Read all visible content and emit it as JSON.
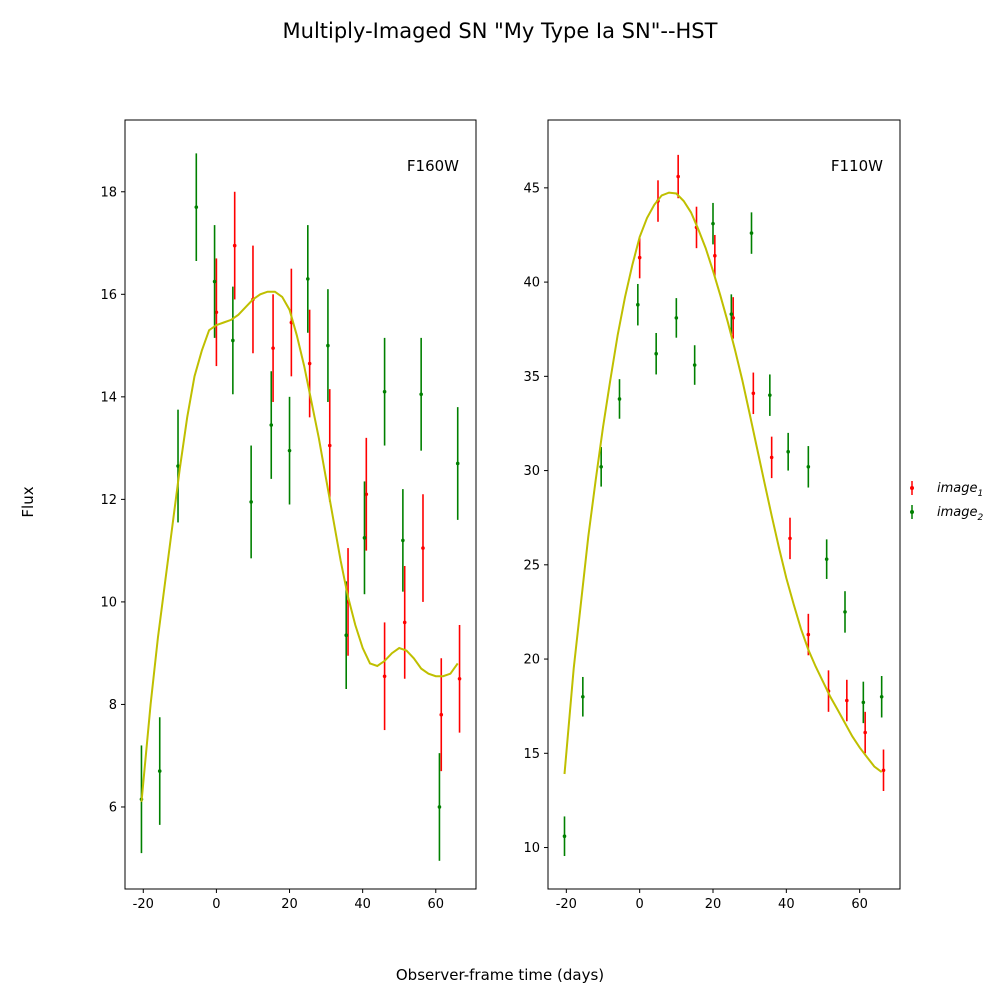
{
  "figure": {
    "title": "Multiply-Imaged SN \"My Type Ia SN\"--HST",
    "xlabel": "Observer-frame time (days)",
    "ylabel": "Flux"
  },
  "legend": {
    "placement": "right",
    "entries": [
      {
        "label": "image",
        "sub": "1",
        "color": "#ff0000"
      },
      {
        "label": "image",
        "sub": "2",
        "color": "#008000"
      }
    ]
  },
  "chart_data": [
    {
      "type": "scatter",
      "panel_label": "F160W",
      "xlim": [
        -25,
        71
      ],
      "ylim": [
        4.4,
        19.4
      ],
      "xticks": [
        "-20",
        "0",
        "20",
        "40",
        "60"
      ],
      "xtick_values": [
        -20,
        0,
        20,
        40,
        60
      ],
      "yticks": [
        "6",
        "8",
        "10",
        "12",
        "14",
        "16",
        "18"
      ],
      "ytick_values": [
        6,
        8,
        10,
        12,
        14,
        16,
        18
      ],
      "model_color": "#bfbf00",
      "series": [
        {
          "name": "image1",
          "color": "#ff0000",
          "points": [
            {
              "x": 0,
              "y": 15.65,
              "err": 1.05
            },
            {
              "x": 5,
              "y": 16.95,
              "err": 1.05
            },
            {
              "x": 10,
              "y": 15.9,
              "err": 1.05
            },
            {
              "x": 15.5,
              "y": 14.95,
              "err": 1.05
            },
            {
              "x": 20.5,
              "y": 15.45,
              "err": 1.05
            },
            {
              "x": 25.5,
              "y": 14.65,
              "err": 1.05
            },
            {
              "x": 31,
              "y": 13.05,
              "err": 1.1
            },
            {
              "x": 36,
              "y": 10.0,
              "err": 1.05
            },
            {
              "x": 41,
              "y": 12.1,
              "err": 1.1
            },
            {
              "x": 46,
              "y": 8.55,
              "err": 1.05
            },
            {
              "x": 51.5,
              "y": 9.6,
              "err": 1.1
            },
            {
              "x": 56.5,
              "y": 11.05,
              "err": 1.05
            },
            {
              "x": 61.5,
              "y": 7.8,
              "err": 1.1
            },
            {
              "x": 66.5,
              "y": 8.5,
              "err": 1.05
            }
          ]
        },
        {
          "name": "image2",
          "color": "#008000",
          "points": [
            {
              "x": -20.5,
              "y": 6.15,
              "err": 1.05
            },
            {
              "x": -15.5,
              "y": 6.7,
              "err": 1.05
            },
            {
              "x": -10.5,
              "y": 12.65,
              "err": 1.1
            },
            {
              "x": -5.5,
              "y": 17.7,
              "err": 1.05
            },
            {
              "x": -0.5,
              "y": 16.25,
              "err": 1.1
            },
            {
              "x": 4.5,
              "y": 15.1,
              "err": 1.05
            },
            {
              "x": 9.5,
              "y": 11.95,
              "err": 1.1
            },
            {
              "x": 15,
              "y": 13.45,
              "err": 1.05
            },
            {
              "x": 20,
              "y": 12.95,
              "err": 1.05
            },
            {
              "x": 25,
              "y": 16.3,
              "err": 1.05
            },
            {
              "x": 30.5,
              "y": 15.0,
              "err": 1.1
            },
            {
              "x": 35.5,
              "y": 9.35,
              "err": 1.05
            },
            {
              "x": 40.5,
              "y": 11.25,
              "err": 1.1
            },
            {
              "x": 46,
              "y": 14.1,
              "err": 1.05
            },
            {
              "x": 51,
              "y": 11.2,
              "err": 1.0
            },
            {
              "x": 56,
              "y": 14.05,
              "err": 1.1
            },
            {
              "x": 61,
              "y": 6.0,
              "err": 1.05
            },
            {
              "x": 66,
              "y": 12.7,
              "err": 1.1
            }
          ]
        }
      ],
      "model": {
        "x": [
          -20.5,
          -18,
          -16,
          -14,
          -12,
          -10,
          -8,
          -6,
          -4,
          -2,
          0,
          2,
          4,
          6,
          8,
          10,
          12,
          14,
          16,
          18,
          20,
          22,
          24,
          26,
          28,
          30,
          32,
          34,
          36,
          38,
          40,
          42,
          44,
          46,
          48,
          50,
          52,
          54,
          56,
          58,
          60,
          62,
          64,
          66
        ],
        "y": [
          6.1,
          8.0,
          9.3,
          10.4,
          11.5,
          12.6,
          13.6,
          14.4,
          14.9,
          15.3,
          15.4,
          15.45,
          15.5,
          15.6,
          15.75,
          15.9,
          16.0,
          16.05,
          16.05,
          15.95,
          15.7,
          15.2,
          14.6,
          13.9,
          13.2,
          12.4,
          11.6,
          10.8,
          10.1,
          9.55,
          9.1,
          8.8,
          8.75,
          8.85,
          9.0,
          9.1,
          9.05,
          8.9,
          8.7,
          8.6,
          8.55,
          8.55,
          8.6,
          8.8
        ]
      }
    },
    {
      "type": "scatter",
      "panel_label": "F110W",
      "xlim": [
        -25,
        71
      ],
      "ylim": [
        7.8,
        48.6
      ],
      "xticks": [
        "-20",
        "0",
        "20",
        "40",
        "60"
      ],
      "xtick_values": [
        -20,
        0,
        20,
        40,
        60
      ],
      "yticks": [
        "10",
        "15",
        "20",
        "25",
        "30",
        "35",
        "40",
        "45"
      ],
      "ytick_values": [
        10,
        15,
        20,
        25,
        30,
        35,
        40,
        45
      ],
      "model_color": "#bfbf00",
      "series": [
        {
          "name": "image1",
          "color": "#ff0000",
          "points": [
            {
              "x": 0,
              "y": 41.3,
              "err": 1.1
            },
            {
              "x": 5,
              "y": 44.3,
              "err": 1.1
            },
            {
              "x": 10.5,
              "y": 45.6,
              "err": 1.15
            },
            {
              "x": 15.5,
              "y": 42.9,
              "err": 1.1
            },
            {
              "x": 20.5,
              "y": 41.4,
              "err": 1.1
            },
            {
              "x": 25.5,
              "y": 38.1,
              "err": 1.1
            },
            {
              "x": 31,
              "y": 34.1,
              "err": 1.1
            },
            {
              "x": 36,
              "y": 30.7,
              "err": 1.1
            },
            {
              "x": 41,
              "y": 26.4,
              "err": 1.1
            },
            {
              "x": 46,
              "y": 21.3,
              "err": 1.1
            },
            {
              "x": 51.5,
              "y": 18.3,
              "err": 1.1
            },
            {
              "x": 56.5,
              "y": 17.8,
              "err": 1.1
            },
            {
              "x": 61.5,
              "y": 16.1,
              "err": 1.1
            },
            {
              "x": 66.5,
              "y": 14.1,
              "err": 1.1
            }
          ]
        },
        {
          "name": "image2",
          "color": "#008000",
          "points": [
            {
              "x": -20.5,
              "y": 10.6,
              "err": 1.05
            },
            {
              "x": -15.5,
              "y": 18.0,
              "err": 1.05
            },
            {
              "x": -10.5,
              "y": 30.2,
              "err": 1.05
            },
            {
              "x": -5.5,
              "y": 33.8,
              "err": 1.05
            },
            {
              "x": -0.5,
              "y": 38.8,
              "err": 1.1
            },
            {
              "x": 4.5,
              "y": 36.2,
              "err": 1.1
            },
            {
              "x": 10,
              "y": 38.1,
              "err": 1.05
            },
            {
              "x": 15,
              "y": 35.6,
              "err": 1.05
            },
            {
              "x": 20,
              "y": 43.1,
              "err": 1.1
            },
            {
              "x": 25,
              "y": 38.3,
              "err": 1.05
            },
            {
              "x": 30.5,
              "y": 42.6,
              "err": 1.1
            },
            {
              "x": 35.5,
              "y": 34.0,
              "err": 1.1
            },
            {
              "x": 40.5,
              "y": 31.0,
              "err": 1.0
            },
            {
              "x": 46,
              "y": 30.2,
              "err": 1.1
            },
            {
              "x": 51,
              "y": 25.3,
              "err": 1.05
            },
            {
              "x": 56,
              "y": 22.5,
              "err": 1.1
            },
            {
              "x": 61,
              "y": 17.7,
              "err": 1.1
            },
            {
              "x": 66,
              "y": 18.0,
              "err": 1.1
            }
          ]
        }
      ],
      "model": {
        "x": [
          -20.5,
          -18,
          -16,
          -14,
          -12,
          -10,
          -8,
          -6,
          -4,
          -2,
          0,
          2,
          4,
          6,
          8,
          10,
          12,
          14,
          16,
          18,
          20,
          22,
          24,
          26,
          28,
          30,
          32,
          34,
          36,
          38,
          40,
          42,
          44,
          46,
          48,
          50,
          52,
          54,
          56,
          58,
          60,
          62,
          64,
          66
        ],
        "y": [
          13.9,
          19.5,
          23.0,
          26.5,
          29.5,
          32.3,
          34.8,
          37.2,
          39.2,
          40.9,
          42.4,
          43.4,
          44.1,
          44.6,
          44.75,
          44.7,
          44.3,
          43.7,
          42.8,
          41.8,
          40.6,
          39.3,
          37.9,
          36.4,
          34.8,
          33.0,
          31.2,
          29.4,
          27.6,
          25.9,
          24.3,
          22.9,
          21.6,
          20.5,
          19.6,
          18.8,
          18.0,
          17.3,
          16.6,
          15.9,
          15.3,
          14.8,
          14.3,
          14.0
        ]
      }
    }
  ]
}
